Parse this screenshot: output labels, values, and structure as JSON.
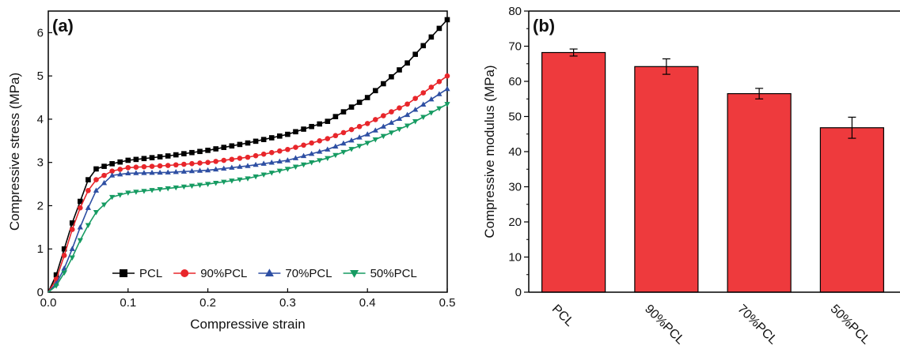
{
  "chart_data": [
    {
      "type": "line",
      "panel_label": "(a)",
      "xlabel": "Compressive strain",
      "ylabel": "Compressive stress (MPa)",
      "xlim": [
        0,
        0.5
      ],
      "ylim": [
        0,
        6.5
      ],
      "xticks": [
        "0.0",
        "0.1",
        "0.2",
        "0.3",
        "0.4",
        "0.5"
      ],
      "yticks": [
        "0",
        "1",
        "2",
        "3",
        "4",
        "5",
        "6"
      ],
      "legend_placement": "bottom",
      "series": [
        {
          "name": "PCL",
          "color": "#000000",
          "marker": "square",
          "points": [
            [
              0,
              0
            ],
            [
              0.01,
              0.4
            ],
            [
              0.02,
              1.0
            ],
            [
              0.03,
              1.6
            ],
            [
              0.04,
              2.1
            ],
            [
              0.05,
              2.6
            ],
            [
              0.06,
              2.85
            ],
            [
              0.08,
              2.97
            ],
            [
              0.1,
              3.05
            ],
            [
              0.15,
              3.15
            ],
            [
              0.2,
              3.28
            ],
            [
              0.25,
              3.45
            ],
            [
              0.3,
              3.65
            ],
            [
              0.35,
              3.95
            ],
            [
              0.4,
              4.5
            ],
            [
              0.45,
              5.3
            ],
            [
              0.5,
              6.3
            ]
          ]
        },
        {
          "name": "90%PCL",
          "color": "#e8262b",
          "marker": "circle",
          "points": [
            [
              0,
              0
            ],
            [
              0.01,
              0.3
            ],
            [
              0.02,
              0.85
            ],
            [
              0.03,
              1.45
            ],
            [
              0.04,
              1.95
            ],
            [
              0.05,
              2.35
            ],
            [
              0.06,
              2.6
            ],
            [
              0.08,
              2.8
            ],
            [
              0.1,
              2.88
            ],
            [
              0.15,
              2.93
            ],
            [
              0.2,
              3.0
            ],
            [
              0.25,
              3.12
            ],
            [
              0.3,
              3.3
            ],
            [
              0.35,
              3.55
            ],
            [
              0.4,
              3.9
            ],
            [
              0.45,
              4.35
            ],
            [
              0.5,
              5.0
            ]
          ]
        },
        {
          "name": "70%PCL",
          "color": "#2e4fa3",
          "marker": "triangle-up",
          "points": [
            [
              0,
              0
            ],
            [
              0.01,
              0.2
            ],
            [
              0.02,
              0.55
            ],
            [
              0.03,
              1.0
            ],
            [
              0.04,
              1.5
            ],
            [
              0.05,
              1.95
            ],
            [
              0.06,
              2.35
            ],
            [
              0.08,
              2.7
            ],
            [
              0.1,
              2.75
            ],
            [
              0.15,
              2.77
            ],
            [
              0.2,
              2.82
            ],
            [
              0.25,
              2.92
            ],
            [
              0.3,
              3.05
            ],
            [
              0.35,
              3.3
            ],
            [
              0.4,
              3.65
            ],
            [
              0.45,
              4.1
            ],
            [
              0.5,
              4.7
            ]
          ]
        },
        {
          "name": "50%PCL",
          "color": "#169b62",
          "marker": "triangle-down",
          "points": [
            [
              0,
              0
            ],
            [
              0.01,
              0.15
            ],
            [
              0.02,
              0.45
            ],
            [
              0.03,
              0.8
            ],
            [
              0.04,
              1.2
            ],
            [
              0.05,
              1.55
            ],
            [
              0.06,
              1.85
            ],
            [
              0.08,
              2.2
            ],
            [
              0.1,
              2.3
            ],
            [
              0.15,
              2.4
            ],
            [
              0.2,
              2.5
            ],
            [
              0.25,
              2.63
            ],
            [
              0.3,
              2.85
            ],
            [
              0.35,
              3.1
            ],
            [
              0.4,
              3.45
            ],
            [
              0.45,
              3.85
            ],
            [
              0.5,
              4.35
            ]
          ]
        }
      ]
    },
    {
      "type": "bar",
      "panel_label": "(b)",
      "xlabel": "",
      "ylabel": "Compressive modulus (MPa)",
      "ylim": [
        0,
        80
      ],
      "yticks": [
        "0",
        "10",
        "20",
        "30",
        "40",
        "50",
        "60",
        "70",
        "80"
      ],
      "categories": [
        "PCL",
        "90%PCL",
        "70%PCL",
        "50%PCL"
      ],
      "values": [
        68.2,
        64.2,
        56.5,
        46.8
      ],
      "errors": [
        1.0,
        2.2,
        1.5,
        3.0
      ],
      "bar_color": "#ee3a3d"
    }
  ]
}
